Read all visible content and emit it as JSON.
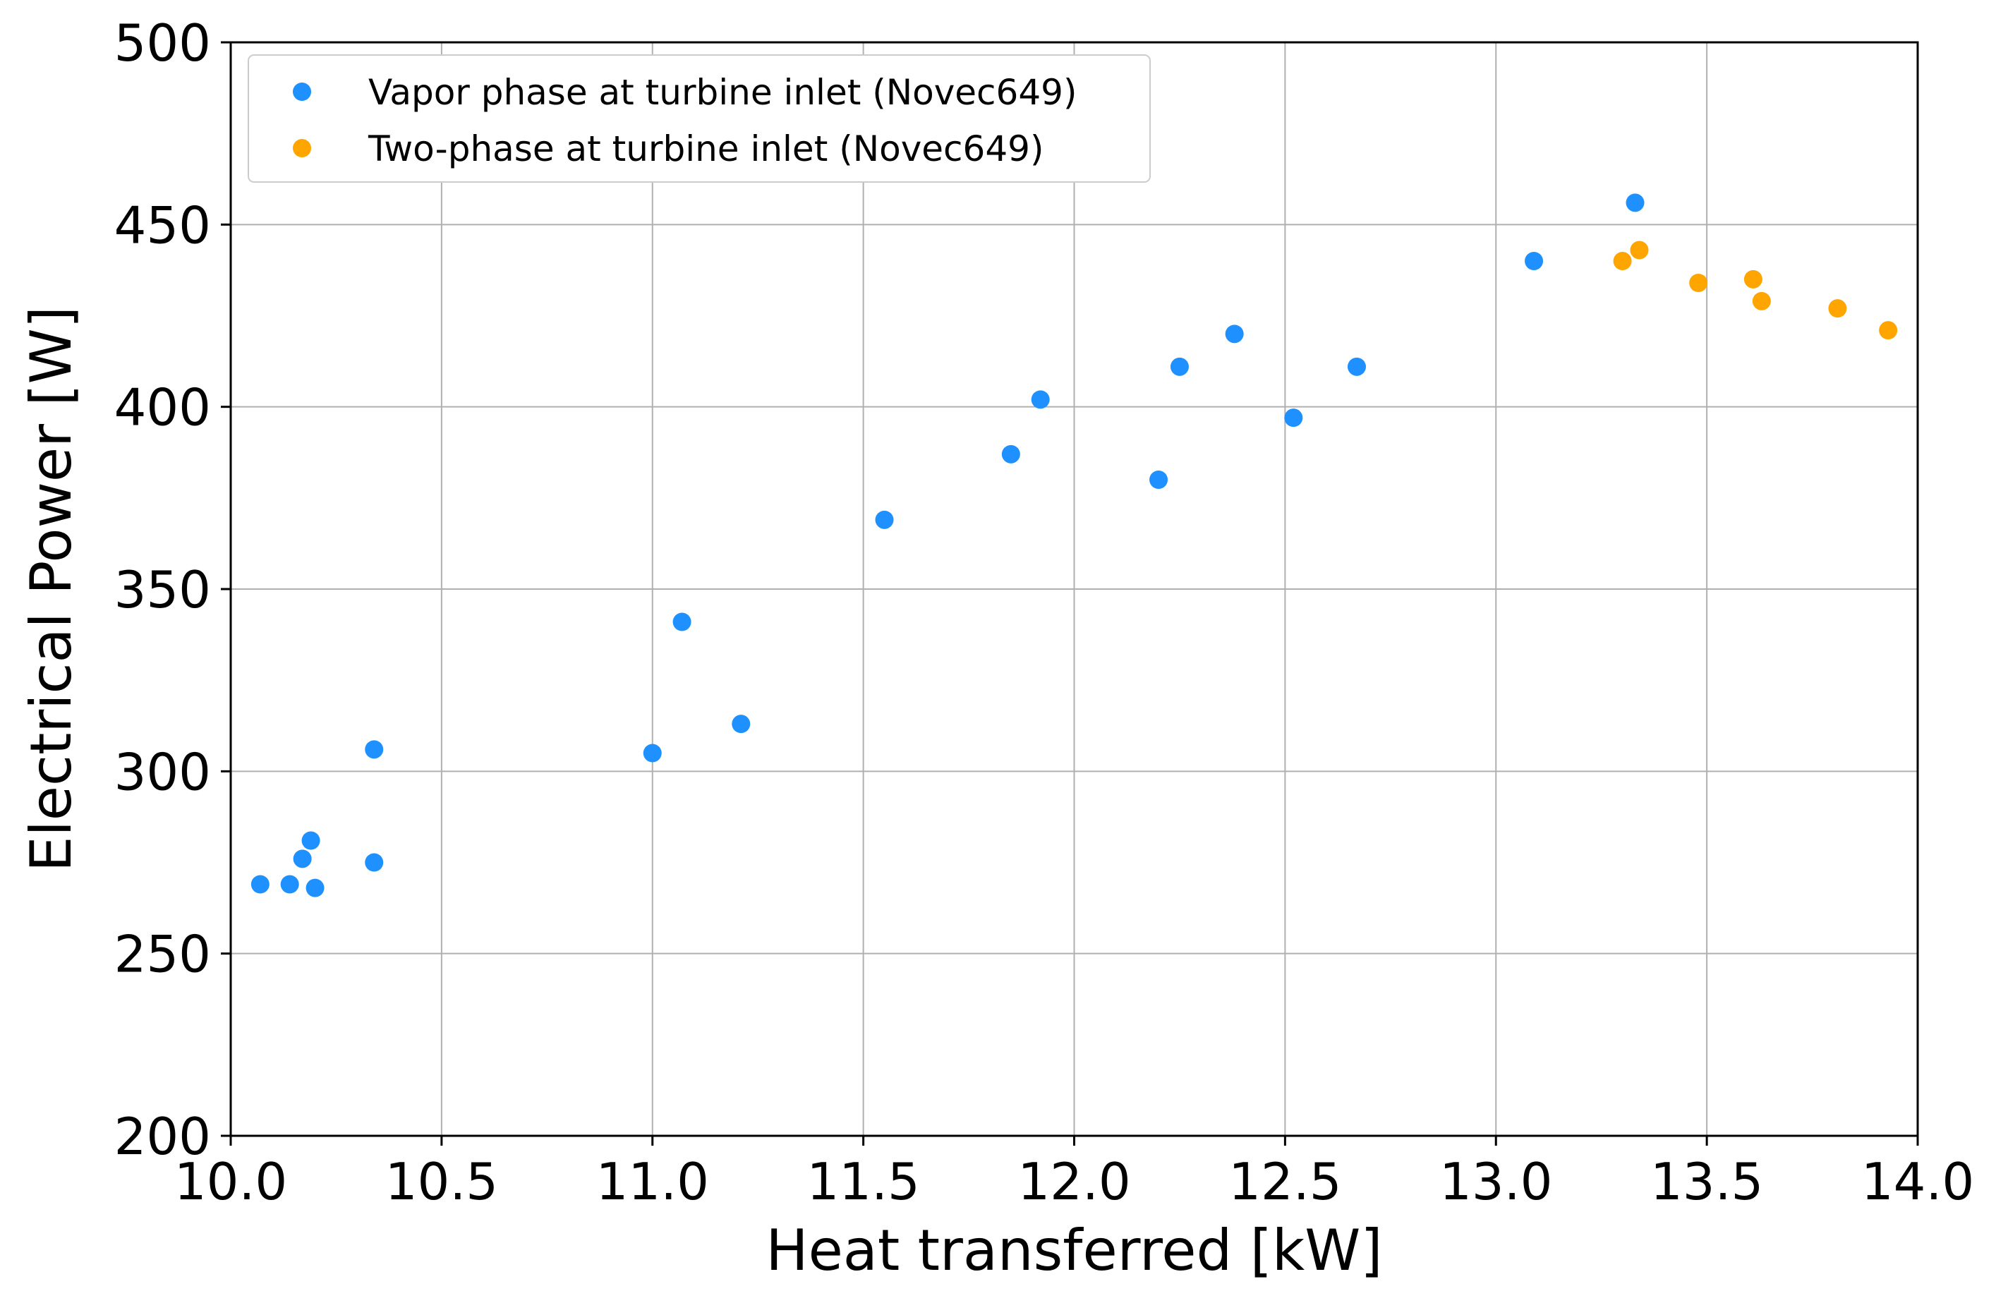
{
  "chart_data": {
    "type": "scatter",
    "title": "",
    "xlabel": "Heat transferred [kW]",
    "ylabel": "Electrical Power [W]",
    "xlim": [
      10.0,
      14.0
    ],
    "ylim": [
      200,
      500
    ],
    "xticks": [
      10.0,
      10.5,
      11.0,
      11.5,
      12.0,
      12.5,
      13.0,
      13.5,
      14.0
    ],
    "xtick_labels": [
      "10.0",
      "10.5",
      "11.0",
      "11.5",
      "12.0",
      "12.5",
      "13.0",
      "13.5",
      "14.0"
    ],
    "yticks": [
      200,
      250,
      300,
      350,
      400,
      450,
      500
    ],
    "ytick_labels": [
      "200",
      "250",
      "300",
      "350",
      "400",
      "450",
      "500"
    ],
    "grid": true,
    "legend_position": "top-left",
    "series": [
      {
        "name": "Vapor phase at turbine inlet (Novec649)",
        "color": "#1e90ff",
        "points": [
          [
            10.07,
            269
          ],
          [
            10.14,
            269
          ],
          [
            10.17,
            276
          ],
          [
            10.19,
            281
          ],
          [
            10.2,
            268
          ],
          [
            10.34,
            306
          ],
          [
            10.34,
            275
          ],
          [
            11.0,
            305
          ],
          [
            11.07,
            341
          ],
          [
            11.21,
            313
          ],
          [
            11.55,
            369
          ],
          [
            11.85,
            387
          ],
          [
            11.92,
            402
          ],
          [
            12.2,
            380
          ],
          [
            12.25,
            411
          ],
          [
            12.38,
            420
          ],
          [
            12.52,
            397
          ],
          [
            12.67,
            411
          ],
          [
            13.09,
            440
          ],
          [
            13.33,
            456
          ]
        ]
      },
      {
        "name": "Two-phase at turbine inlet (Novec649)",
        "color": "#ffa500",
        "points": [
          [
            13.3,
            440
          ],
          [
            13.34,
            443
          ],
          [
            13.48,
            434
          ],
          [
            13.61,
            435
          ],
          [
            13.63,
            429
          ],
          [
            13.81,
            427
          ],
          [
            13.93,
            421
          ]
        ]
      }
    ]
  }
}
